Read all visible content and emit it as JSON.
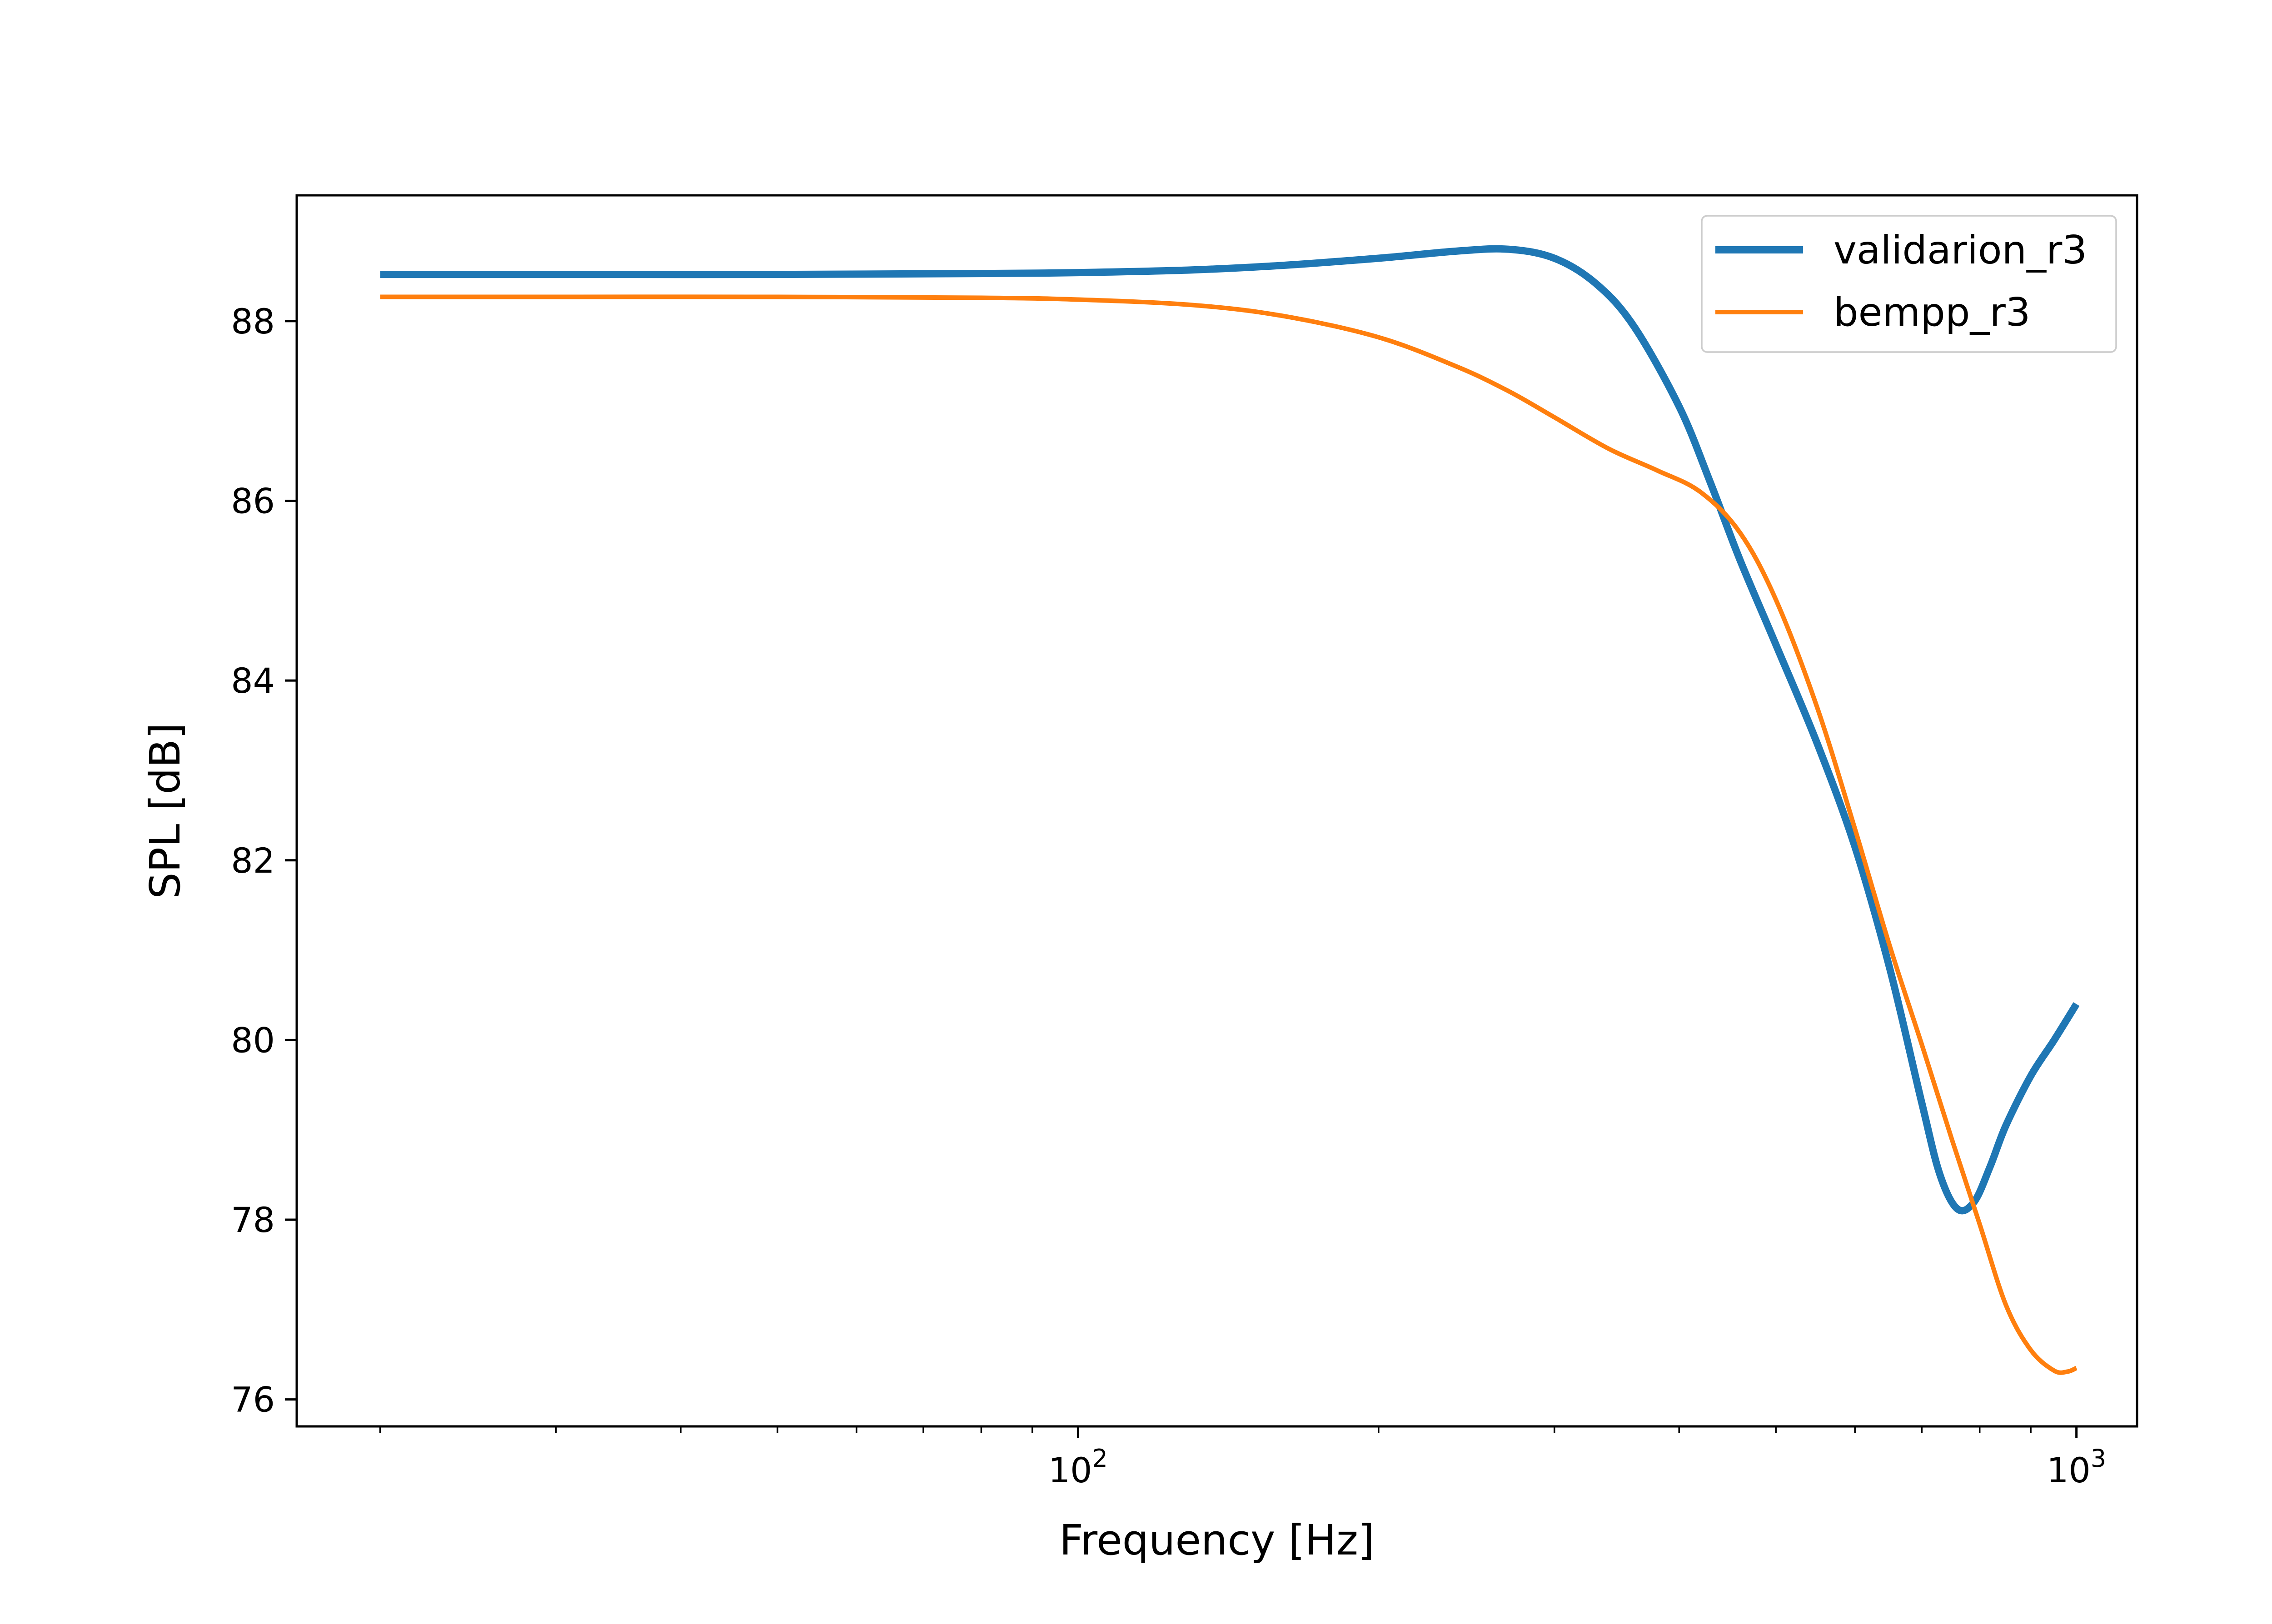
{
  "chart_data": {
    "type": "line",
    "title": "",
    "xlabel": "Frequency [Hz]",
    "ylabel": "SPL [dB]",
    "x_scale": "log",
    "xlim": [
      16.5,
      1150
    ],
    "ylim": [
      75.7,
      89.4
    ],
    "y_ticks": [
      76,
      78,
      80,
      82,
      84,
      86,
      88
    ],
    "x_ticks": [
      {
        "value": 100,
        "base": "10",
        "exp": "2"
      },
      {
        "value": 1000,
        "base": "10",
        "exp": "3"
      }
    ],
    "x_minor_ticks": [
      20,
      30,
      40,
      50,
      60,
      70,
      80,
      90,
      200,
      300,
      400,
      500,
      600,
      700,
      800,
      900
    ],
    "grid": false,
    "legend_position": "top-right",
    "series": [
      {
        "name": "validarion_r3",
        "color": "#1f77b4",
        "x": [
          20,
          30,
          50,
          80,
          100,
          130,
          160,
          200,
          240,
          270,
          300,
          330,
          360,
          400,
          430,
          460,
          500,
          550,
          600,
          650,
          700,
          730,
          760,
          790,
          820,
          850,
          900,
          950,
          1000
        ],
        "y": [
          88.52,
          88.52,
          88.52,
          88.53,
          88.54,
          88.57,
          88.62,
          88.7,
          88.78,
          88.8,
          88.7,
          88.42,
          87.95,
          87.05,
          86.2,
          85.35,
          84.4,
          83.3,
          82.15,
          80.8,
          79.3,
          78.5,
          78.12,
          78.2,
          78.6,
          79.05,
          79.6,
          80.0,
          80.4
        ]
      },
      {
        "name": "bempp_r3",
        "color": "#ff7f0e",
        "x": [
          20,
          30,
          50,
          80,
          100,
          130,
          160,
          200,
          240,
          270,
          300,
          340,
          380,
          420,
          460,
          500,
          550,
          600,
          650,
          700,
          750,
          800,
          850,
          900,
          950,
          980,
          1000
        ],
        "y": [
          88.27,
          88.27,
          88.27,
          88.26,
          88.24,
          88.18,
          88.06,
          87.82,
          87.49,
          87.22,
          86.93,
          86.58,
          86.34,
          86.1,
          85.65,
          84.9,
          83.7,
          82.35,
          81.05,
          79.95,
          78.9,
          77.95,
          77.05,
          76.55,
          76.32,
          76.31,
          76.35
        ]
      }
    ]
  }
}
